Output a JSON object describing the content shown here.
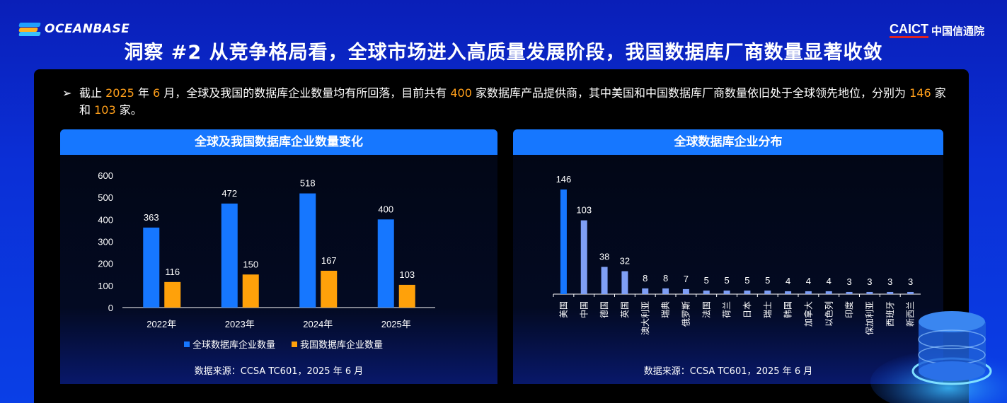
{
  "brand_left": "OCEANBASE",
  "brand_right": {
    "caict": "CAICT",
    "cn": "中国信通院"
  },
  "title": "洞察 #2 从竞争格局看，全球市场进入高质量发展阶段，我国数据库厂商数量显著收敛",
  "intro": {
    "bullet": "➢",
    "t1": "截止 ",
    "year": "2025",
    "t2": " 年 ",
    "month": "6",
    "t3": " 月，全球及我国的数据库企业数量均有所回落，目前共有 ",
    "total": "400",
    "t4": " 家数据库产品提供商，其中美国和中国数据库厂商数量依旧处于全球领先地位，分别为 ",
    "us": "146",
    "t5": " 家和 ",
    "cn": "103",
    "t6": " 家。"
  },
  "colors": {
    "blue": "#1677ff",
    "orange": "#ffa10a",
    "light_blue": "#7f9ff5",
    "highlight": "#ff9f1a"
  },
  "chart_data": [
    {
      "type": "bar",
      "title": "全球及我国数据库企业数量变化",
      "categories": [
        "2022年",
        "2023年",
        "2024年",
        "2025年"
      ],
      "series": [
        {
          "name": "全球数据库企业数量",
          "values": [
            363,
            472,
            518,
            400
          ]
        },
        {
          "name": "我国数据库企业数量",
          "values": [
            116,
            150,
            167,
            103
          ]
        }
      ],
      "ylim": [
        0,
        600
      ],
      "yticks": [
        0,
        100,
        200,
        300,
        400,
        500,
        600
      ],
      "legend": "bottom",
      "source": "数据来源：CCSA TC601，2025 年 6 月"
    },
    {
      "type": "bar",
      "title": "全球数据库企业分布",
      "categories": [
        "美国",
        "中国",
        "德国",
        "英国",
        "澳大利亚",
        "瑞典",
        "俄罗斯",
        "法国",
        "荷兰",
        "日本",
        "瑞士",
        "韩国",
        "加拿大",
        "以色列",
        "印度",
        "保加利亚",
        "西班牙",
        "新西兰"
      ],
      "values": [
        146,
        103,
        38,
        32,
        8,
        8,
        7,
        5,
        5,
        5,
        5,
        4,
        4,
        4,
        3,
        3,
        3,
        3
      ],
      "ylim": [
        0,
        150
      ],
      "source": "数据来源：CCSA TC601，2025 年 6 月"
    }
  ]
}
